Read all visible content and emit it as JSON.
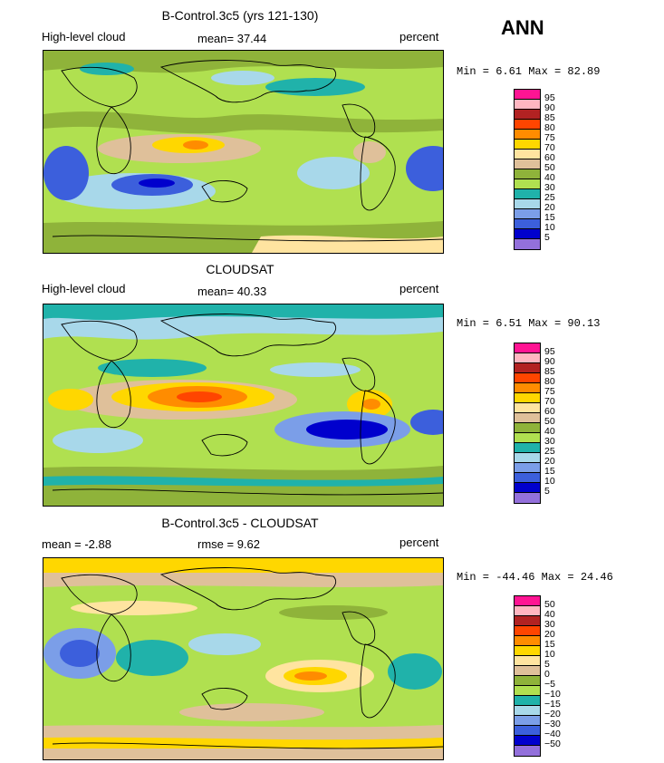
{
  "season": "ANN",
  "panels": [
    {
      "title": "B-Control.3c5 (yrs 121-130)",
      "left_label": "High-level cloud",
      "mid_label": "mean=  37.44",
      "right_label": "percent",
      "minmax": "Min =    6.61 Max =   82.89",
      "scale": "abs",
      "ticks": [
        "95",
        "90",
        "85",
        "80",
        "75",
        "70",
        "60",
        "50",
        "40",
        "30",
        "25",
        "20",
        "15",
        "10",
        "5"
      ]
    },
    {
      "title": "CLOUDSAT",
      "left_label": "High-level cloud",
      "mid_label": "mean=  40.33",
      "right_label": "percent",
      "minmax": "Min =    6.51 Max =   90.13",
      "scale": "abs",
      "ticks": [
        "95",
        "90",
        "85",
        "80",
        "75",
        "70",
        "60",
        "50",
        "40",
        "30",
        "25",
        "20",
        "15",
        "10",
        "5"
      ]
    },
    {
      "title": "B-Control.3c5 - CLOUDSAT",
      "left_label": "mean =  -2.88",
      "mid_label": "rmse =   9.62",
      "right_label": "percent",
      "minmax": "Min = -44.46 Max =  24.46",
      "scale": "diff",
      "ticks": [
        "50",
        "40",
        "30",
        "20",
        "15",
        "10",
        "5",
        "0",
        "−5",
        "−10",
        "−15",
        "−20",
        "−30",
        "−40",
        "−50"
      ]
    }
  ],
  "colors": {
    "abs": [
      "#ff1493",
      "#ffb6c1",
      "#b22222",
      "#ff4500",
      "#ff8c00",
      "#ffd700",
      "#ffe4a0",
      "#dfc09a",
      "#8fb33a",
      "#b0e050",
      "#20b2aa",
      "#a8d8ea",
      "#7b9ee8",
      "#3c5fdc",
      "#0000cd",
      "#9370db"
    ],
    "diff": [
      "#ff1493",
      "#ffb6c1",
      "#b22222",
      "#ff4500",
      "#ff8c00",
      "#ffd700",
      "#ffe4a0",
      "#dfc09a",
      "#8fb33a",
      "#b0e050",
      "#20b2aa",
      "#a8d8ea",
      "#7b9ee8",
      "#3c5fdc",
      "#0000cd",
      "#9370db"
    ]
  }
}
